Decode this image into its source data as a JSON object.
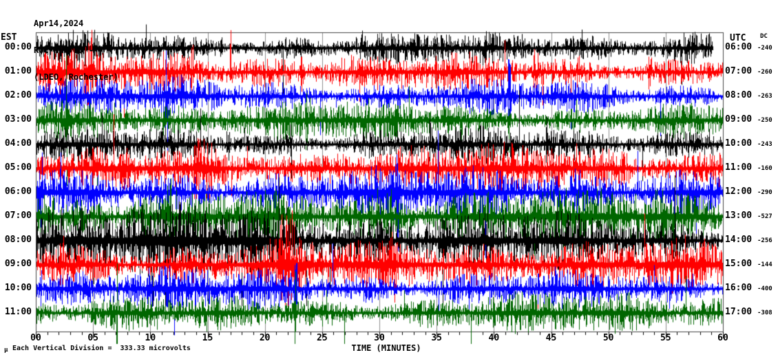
{
  "header": {
    "date": "Apr14,2024",
    "station": "ROC HHN LD --",
    "location": "(LDEO, Rochester)"
  },
  "footer": {
    "symbol": "μ",
    "scale_note": "Each Vertical Division =  333.33 microvolts"
  },
  "chart_data": {
    "type": "line",
    "subtype": "helicorder-seismogram",
    "title": "ROC HHN LD -- (LDEO, Rochester) Apr14,2024",
    "x_axis": {
      "label": "TIME (MINUTES)",
      "min": 0,
      "max": 60,
      "major_tick_step": 5,
      "minor_tick_step": 1,
      "tick_labels": [
        "00",
        "05",
        "10",
        "15",
        "20",
        "25",
        "30",
        "35",
        "40",
        "45",
        "50",
        "55",
        "60"
      ]
    },
    "left_axis": {
      "label": "EST",
      "tick_labels": [
        "00:00",
        "01:00",
        "02:00",
        "03:00",
        "04:00",
        "05:00",
        "06:00",
        "07:00",
        "08:00",
        "09:00",
        "10:00",
        "11:00"
      ]
    },
    "right_axis": {
      "label": "UTC",
      "tick_labels": [
        "06:00",
        "07:00",
        "08:00",
        "09:00",
        "10:00",
        "11:00",
        "12:00",
        "13:00",
        "14:00",
        "15:00",
        "16:00",
        "17:00"
      ]
    },
    "dc_column": {
      "label": "DC",
      "values": [
        "-240",
        "-260",
        "-263",
        "-250",
        "-243",
        "-160",
        "-290",
        "-527",
        "-256",
        "-144",
        "-400",
        "-308"
      ]
    },
    "grid": {
      "vertical_gridlines_minutes": [
        5,
        10,
        15,
        20,
        25,
        30,
        35,
        40,
        45,
        50,
        55
      ],
      "gridline_color": "#8c8c8c",
      "frame_color": "#444444",
      "tick_color": "#000000"
    },
    "scale_note_microvolts_per_division": 333.33,
    "trace_color_cycle": [
      "#000000",
      "#ff0000",
      "#0000ff",
      "#006600"
    ],
    "traces": [
      {
        "est": "00:00",
        "utc": "06:00",
        "dc": "-240",
        "color": "#000000",
        "seed": 101,
        "base_amp": 8.5,
        "end_min": 59.1,
        "events": [
          {
            "m": 16.1,
            "len": 0.25,
            "amp": 2.8
          },
          {
            "m": 28.4,
            "len": 0.2,
            "amp": 2.4
          },
          {
            "m": 47.5,
            "len": 0.2,
            "amp": 2.2
          }
        ]
      },
      {
        "est": "01:00",
        "utc": "07:00",
        "dc": "-260",
        "color": "#ff0000",
        "seed": 202,
        "base_amp": 9.5,
        "end_min": 60,
        "events": [
          {
            "m": 4.3,
            "len": 0.6,
            "amp": 2.1
          },
          {
            "m": 13.5,
            "len": 0.3,
            "amp": 2.0
          },
          {
            "m": 23.0,
            "len": 0.4,
            "amp": 2.0
          },
          {
            "m": 28.2,
            "len": 0.3,
            "amp": 2.2
          },
          {
            "m": 43.4,
            "len": 0.4,
            "amp": 2.0
          },
          {
            "m": 47.2,
            "len": 0.4,
            "amp": 2.2
          },
          {
            "m": 53.5,
            "len": 0.3,
            "amp": 2.0
          }
        ]
      },
      {
        "est": "02:00",
        "utc": "08:00",
        "dc": "-263",
        "color": "#0000ff",
        "seed": 303,
        "base_amp": 9.0,
        "end_min": 60,
        "events": [
          {
            "m": 11.3,
            "len": 0.2,
            "amp": 2.6
          },
          {
            "m": 41.2,
            "len": 0.25,
            "amp": 2.4
          }
        ]
      },
      {
        "est": "03:00",
        "utc": "09:00",
        "dc": "-250",
        "color": "#006600",
        "seed": 404,
        "base_amp": 9.0,
        "end_min": 60,
        "events": [
          {
            "m": 2.6,
            "len": 0.12,
            "amp": 6.0
          },
          {
            "m": 23.5,
            "len": 0.5,
            "amp": 1.8
          },
          {
            "m": 41.2,
            "len": 0.15,
            "amp": 4.5
          }
        ]
      },
      {
        "est": "04:00",
        "utc": "10:00",
        "dc": "-243",
        "color": "#000000",
        "seed": 505,
        "base_amp": 9.0,
        "end_min": 60,
        "events": [
          {
            "m": 16.6,
            "len": 0.3,
            "amp": 2.4
          },
          {
            "m": 22.2,
            "len": 0.15,
            "amp": 5.5
          },
          {
            "m": 34.3,
            "len": 0.3,
            "amp": 2.2
          },
          {
            "m": 44.5,
            "len": 0.2,
            "amp": 2.4
          }
        ]
      },
      {
        "est": "05:00",
        "utc": "11:00",
        "dc": "-160",
        "color": "#ff0000",
        "seed": 606,
        "base_amp": 10.5,
        "end_min": 60,
        "events": [
          {
            "m": 13.8,
            "len": 1.6,
            "amp": 1.5
          },
          {
            "m": 26.3,
            "len": 1.6,
            "amp": 1.45
          },
          {
            "m": 45.0,
            "len": 0.8,
            "amp": 1.5
          }
        ]
      },
      {
        "est": "06:00",
        "utc": "12:00",
        "dc": "-290",
        "color": "#0000ff",
        "seed": 707,
        "base_amp": 11.5,
        "end_min": 60,
        "events": [
          {
            "m": 0,
            "len": 0.6,
            "amp": 2.3
          },
          {
            "m": 31.4,
            "len": 0.3,
            "amp": 2.2
          },
          {
            "m": 47.0,
            "len": 0.5,
            "amp": 1.5
          }
        ]
      },
      {
        "est": "07:00",
        "utc": "13:00",
        "dc": "-527",
        "color": "#006600",
        "seed": 808,
        "base_amp": 13.0,
        "end_min": 60,
        "events": [
          {
            "m": 0,
            "len": 1.6,
            "amp": 2.5
          },
          {
            "m": 11.4,
            "len": 0.5,
            "amp": 1.7
          },
          {
            "m": 30.5,
            "len": 0.6,
            "amp": 1.5
          }
        ]
      },
      {
        "est": "08:00",
        "utc": "14:00",
        "dc": "-256",
        "color": "#000000",
        "seed": 909,
        "base_amp": 13.5,
        "end_min": 60,
        "events": [
          {
            "m": 0,
            "len": 27,
            "amp": 1.25
          },
          {
            "m": 21.8,
            "len": 0.3,
            "amp": 1.8
          }
        ]
      },
      {
        "est": "09:00",
        "utc": "15:00",
        "dc": "-144",
        "color": "#ff0000",
        "seed": 1010,
        "base_amp": 12.0,
        "end_min": 60,
        "events": [
          {
            "m": 2.0,
            "len": 0.5,
            "amp": 1.6
          },
          {
            "m": 21.3,
            "len": 1.4,
            "amp": 1.9
          },
          {
            "m": 31.0,
            "len": 0.5,
            "amp": 1.5
          }
        ]
      },
      {
        "est": "10:00",
        "utc": "16:00",
        "dc": "-400",
        "color": "#0000ff",
        "seed": 1111,
        "base_amp": 9.5,
        "end_min": 60,
        "events": [
          {
            "m": 0.2,
            "len": 0.3,
            "amp": 2.0
          },
          {
            "m": 22.4,
            "len": 0.4,
            "amp": 2.2
          }
        ]
      },
      {
        "est": "11:00",
        "utc": "17:00",
        "dc": "-308",
        "color": "#006600",
        "seed": 1212,
        "base_amp": 9.5,
        "end_min": 60,
        "events": [
          {
            "m": 7.0,
            "len": 0.15,
            "amp": 3.2
          },
          {
            "m": 22.5,
            "len": 0.25,
            "amp": 4.5
          },
          {
            "m": 32.0,
            "len": 0.2,
            "amp": 2.5
          }
        ]
      }
    ]
  }
}
